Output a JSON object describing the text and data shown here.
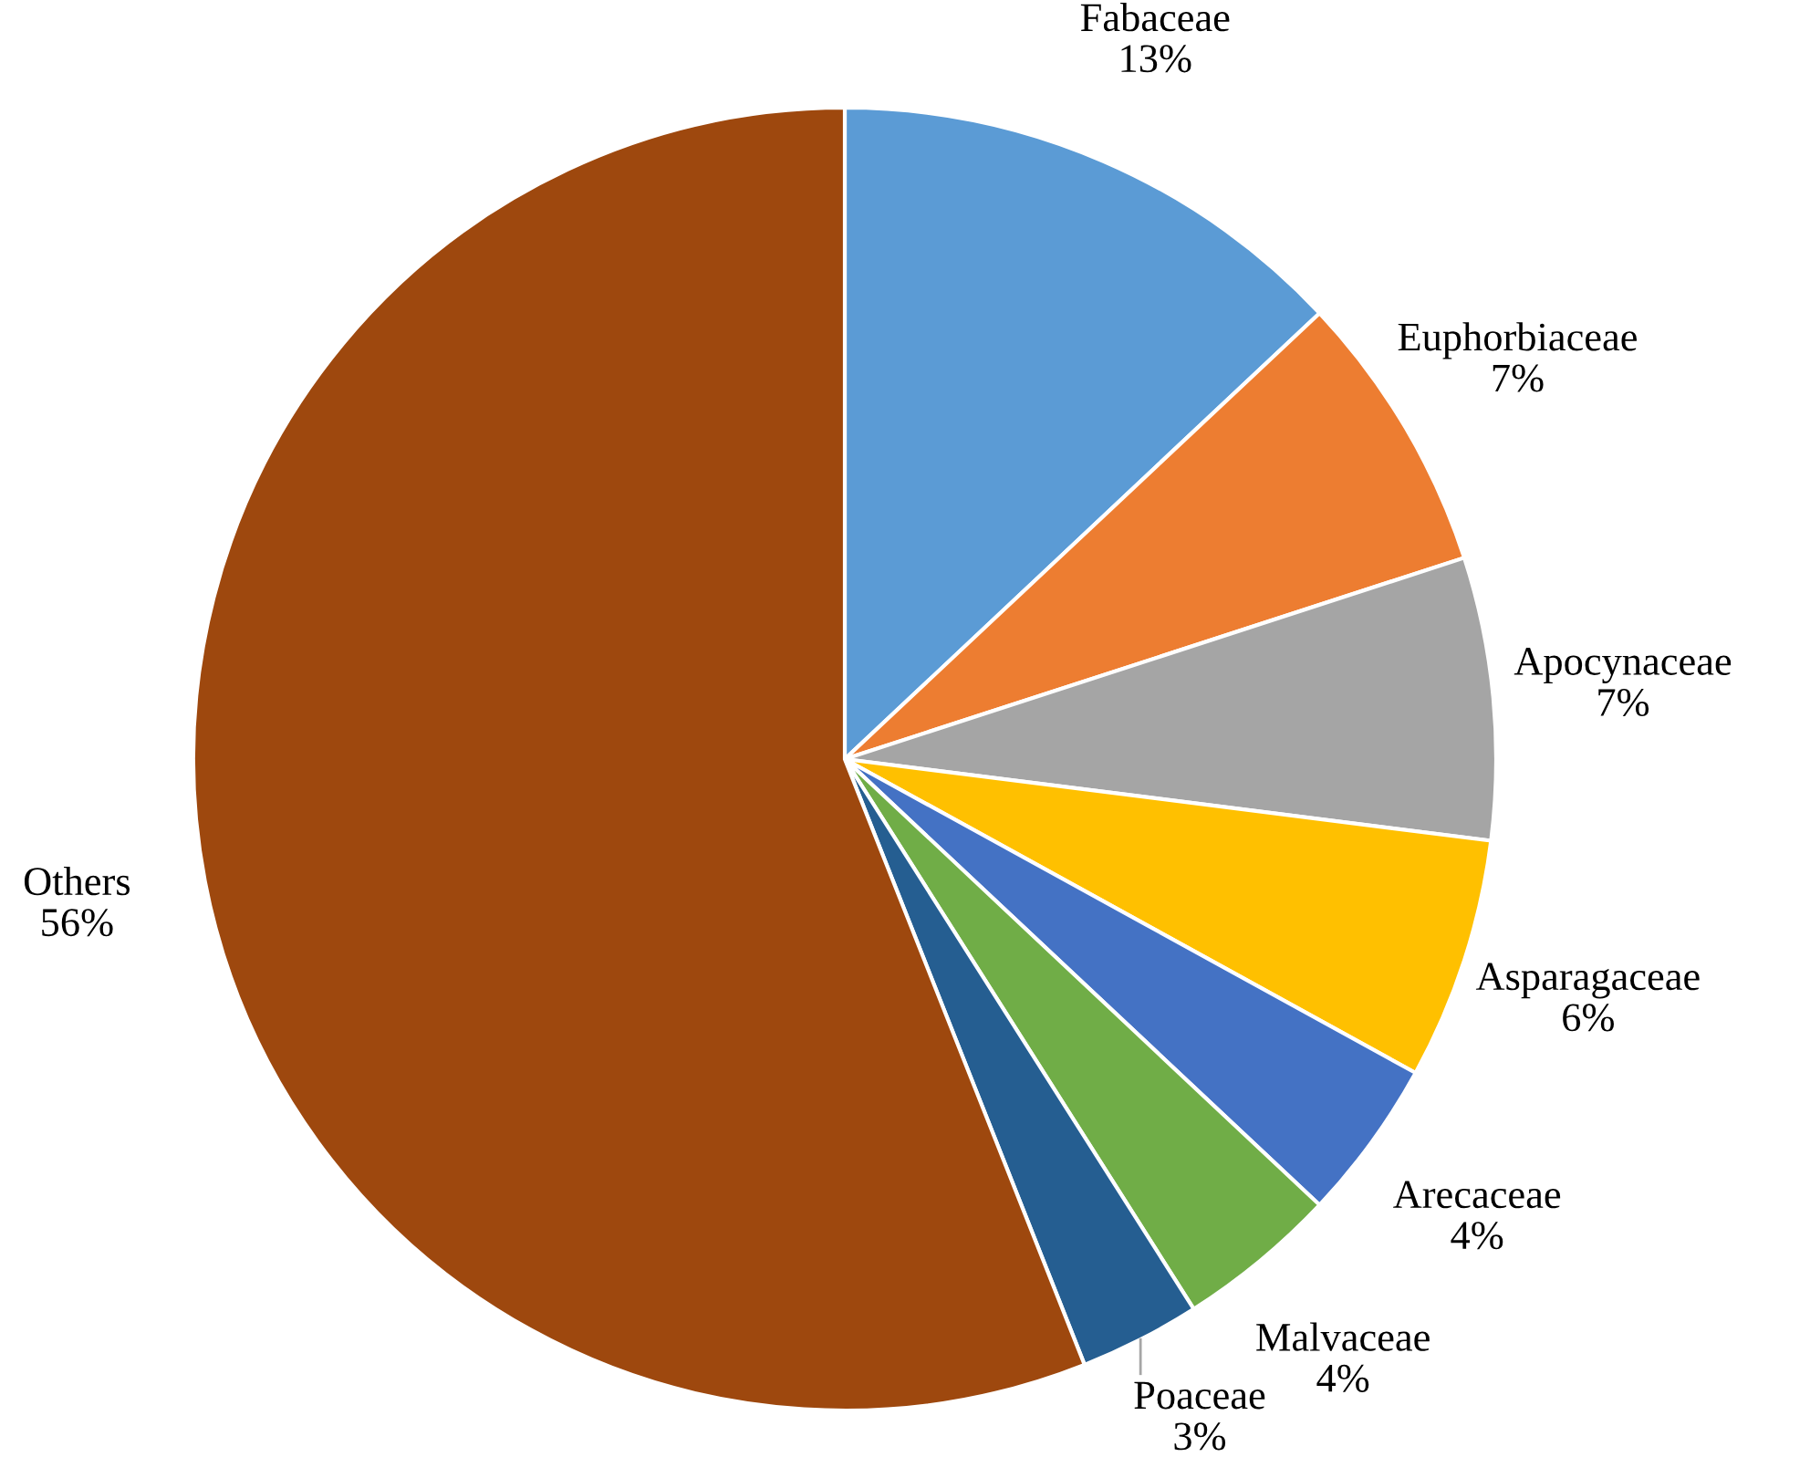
{
  "chart_data": {
    "type": "pie",
    "categories": [
      "Fabaceae",
      "Euphorbiaceae",
      "Apocynaceae",
      "Asparagaceae",
      "Arecaceae",
      "Malvaceae",
      "Poaceae",
      "Others"
    ],
    "values": [
      13,
      7,
      7,
      6,
      4,
      4,
      3,
      56
    ],
    "value_labels": [
      "13%",
      "7%",
      "7%",
      "6%",
      "4%",
      "4%",
      "3%",
      "56%"
    ],
    "colors": [
      "#5b9bd5",
      "#ed7d31",
      "#a5a5a5",
      "#ffc000",
      "#4472c4",
      "#70ad47",
      "#255e91",
      "#9e480e"
    ]
  }
}
